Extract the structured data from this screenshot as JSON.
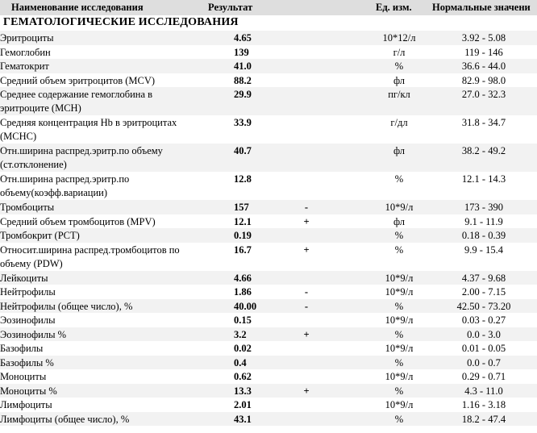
{
  "header": {
    "name": "Наименование исследования",
    "result": "Результат",
    "unit": "Ед. изм.",
    "range": "Нормальные значени"
  },
  "section_title": "ГЕМАТОЛОГИЧЕСКИЕ ИССЛЕДОВАНИЯ",
  "rows": [
    {
      "name": "Эритроциты",
      "result": "4.65",
      "flag": "",
      "unit": "10*12/л",
      "range": "3.92 - 5.08",
      "lines": 1
    },
    {
      "name": "Гемоглобин",
      "result": "139",
      "flag": "",
      "unit": "г/л",
      "range": "119 - 146",
      "lines": 1
    },
    {
      "name": "Гематокрит",
      "result": "41.0",
      "flag": "",
      "unit": "%",
      "range": "36.6 - 44.0",
      "lines": 1
    },
    {
      "name": "Средний объем эритроцитов (MCV)",
      "result": "88.2",
      "flag": "",
      "unit": "фл",
      "range": "82.9 - 98.0",
      "lines": 1
    },
    {
      "name": "Среднее содержание гемоглобина в эритроците (MCH)",
      "result": "29.9",
      "flag": "",
      "unit": "пг/кл",
      "range": "27.0 - 32.3",
      "lines": 2
    },
    {
      "name": "Средняя концентрация Hb в эритроцитах (MCHC)",
      "result": "33.9",
      "flag": "",
      "unit": "г/дл",
      "range": "31.8 - 34.7",
      "lines": 2
    },
    {
      "name": "Отн.ширина распред.эритр.по объему (ст.отклонение)",
      "result": "40.7",
      "flag": "",
      "unit": "фл",
      "range": "38.2 - 49.2",
      "lines": 2
    },
    {
      "name": "Отн.ширина распред.эритр.по объему(коэфф.вариации)",
      "result": "12.8",
      "flag": "",
      "unit": "%",
      "range": "12.1 - 14.3",
      "lines": 2
    },
    {
      "name": "Тромбоциты",
      "result": "157",
      "flag": "-",
      "unit": "10*9/л",
      "range": "173 - 390",
      "lines": 1
    },
    {
      "name": "Средний объем тромбоцитов (MPV)",
      "result": "12.1",
      "flag": "+",
      "unit": "фл",
      "range": "9.1 - 11.9",
      "lines": 1
    },
    {
      "name": "Тромбокрит (PCT)",
      "result": "0.19",
      "flag": "",
      "unit": "%",
      "range": "0.18 - 0.39",
      "lines": 1
    },
    {
      "name": "Относит.ширина распред.тромбоцитов по объему (PDW)",
      "result": "16.7",
      "flag": "+",
      "unit": "%",
      "range": "9.9 - 15.4",
      "lines": 2
    },
    {
      "name": "Лейкоциты",
      "result": "4.66",
      "flag": "",
      "unit": "10*9/л",
      "range": "4.37 - 9.68",
      "lines": 1
    },
    {
      "name": "Нейтрофилы",
      "result": "1.86",
      "flag": "-",
      "unit": "10*9/л",
      "range": "2.00 - 7.15",
      "lines": 1
    },
    {
      "name": "Нейтрофилы (общее число), %",
      "result": "40.00",
      "flag": "-",
      "unit": "%",
      "range": "42.50 - 73.20",
      "lines": 1
    },
    {
      "name": "Эозинофилы",
      "result": "0.15",
      "flag": "",
      "unit": "10*9/л",
      "range": "0.03 - 0.27",
      "lines": 1
    },
    {
      "name": "Эозинофилы %",
      "result": "3.2",
      "flag": "+",
      "unit": "%",
      "range": "0.0 - 3.0",
      "lines": 1
    },
    {
      "name": "Базофилы",
      "result": "0.02",
      "flag": "",
      "unit": "10*9/л",
      "range": "0.01 - 0.05",
      "lines": 1
    },
    {
      "name": "Базофилы %",
      "result": "0.4",
      "flag": "",
      "unit": "%",
      "range": "0.0 - 0.7",
      "lines": 1
    },
    {
      "name": "Моноциты",
      "result": "0.62",
      "flag": "",
      "unit": "10*9/л",
      "range": "0.29 - 0.71",
      "lines": 1
    },
    {
      "name": "Моноциты %",
      "result": "13.3",
      "flag": "+",
      "unit": "%",
      "range": "4.3 - 11.0",
      "lines": 1
    },
    {
      "name": "Лимфоциты",
      "result": "2.01",
      "flag": "",
      "unit": "10*9/л",
      "range": "1.16 - 3.18",
      "lines": 1
    },
    {
      "name": "Лимфоциты (общее число), %",
      "result": "43.1",
      "flag": "",
      "unit": "%",
      "range": "18.2 - 47.4",
      "lines": 1
    }
  ]
}
